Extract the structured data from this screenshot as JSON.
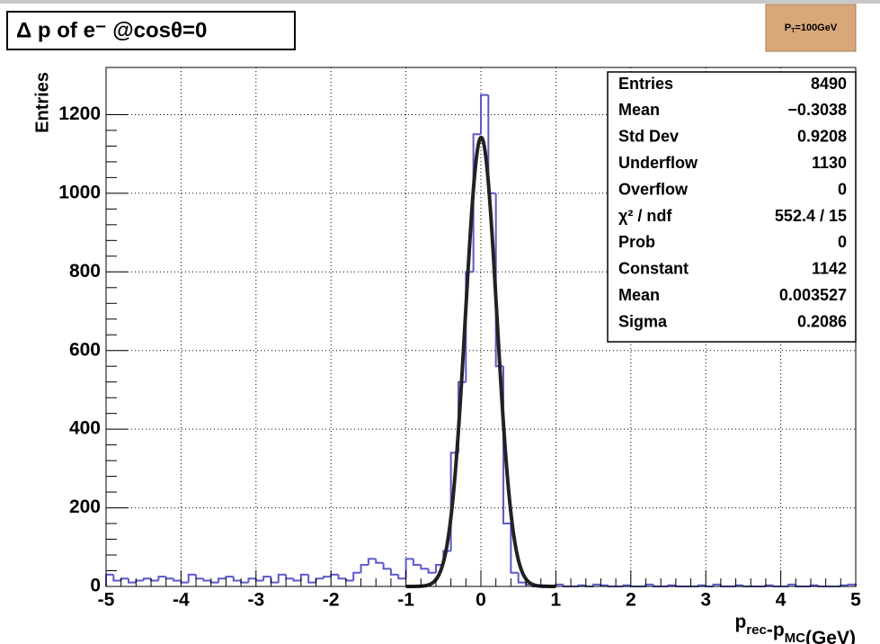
{
  "chart_data": {
    "type": "histogram",
    "title": "Δ p of e⁻ @cosθ=0",
    "tag": {
      "base": "P",
      "sub": "T",
      "rest": "=100GeV"
    },
    "x_label": {
      "parts": [
        {
          "base": "p",
          "sub": "rec"
        },
        {
          "base": "-p",
          "sub": "MC"
        }
      ],
      "rest": "(GeV)"
    },
    "y_label": "Entries",
    "bins": [
      -5,
      -4.9,
      -4.8,
      -4.7,
      -4.6,
      -4.5,
      -4.4,
      -4.3,
      -4.2,
      -4.1,
      -4,
      -3.9,
      -3.8,
      -3.7,
      -3.6,
      -3.5,
      -3.4,
      -3.3,
      -3.2,
      -3.1,
      -3,
      -2.9,
      -2.8,
      -2.7,
      -2.6,
      -2.5,
      -2.4,
      -2.3,
      -2.2,
      -2.1,
      -2,
      -1.9,
      -1.8,
      -1.7,
      -1.6,
      -1.5,
      -1.4,
      -1.3,
      -1.2,
      -1.1,
      -1,
      -0.9,
      -0.8,
      -0.7,
      -0.6,
      -0.5,
      -0.4,
      -0.3,
      -0.2,
      -0.1,
      0,
      0.1,
      0.2,
      0.3,
      0.4,
      0.5,
      0.6,
      0.7,
      0.8,
      0.9,
      1,
      1.1,
      1.2,
      1.3,
      1.4,
      1.5,
      1.6,
      1.7,
      1.8,
      1.9,
      2,
      2.1,
      2.2,
      2.3,
      2.4,
      2.5,
      2.6,
      2.7,
      2.8,
      2.9,
      3,
      3.1,
      3.2,
      3.3,
      3.4,
      3.5,
      3.6,
      3.7,
      3.8,
      3.9,
      4,
      4.1,
      4.2,
      4.3,
      4.4,
      4.5,
      4.6,
      4.7,
      4.8,
      4.9,
      5
    ],
    "values": [
      30,
      15,
      20,
      10,
      15,
      20,
      15,
      25,
      20,
      15,
      10,
      30,
      20,
      15,
      10,
      20,
      25,
      15,
      10,
      20,
      15,
      25,
      10,
      30,
      20,
      15,
      30,
      10,
      20,
      25,
      30,
      20,
      15,
      35,
      55,
      70,
      60,
      45,
      30,
      20,
      70,
      55,
      45,
      35,
      55,
      90,
      340,
      520,
      800,
      1150,
      1250,
      1000,
      560,
      160,
      35,
      10,
      5,
      0,
      3,
      0,
      5,
      0,
      0,
      3,
      0,
      5,
      3,
      0,
      0,
      3,
      0,
      0,
      5,
      0,
      0,
      3,
      0,
      0,
      0,
      3,
      0,
      5,
      0,
      0,
      3,
      0,
      0,
      0,
      3,
      0,
      0,
      5,
      0,
      0,
      3,
      0,
      0,
      0,
      3,
      5
    ],
    "color": "#5a5ac8",
    "fit": {
      "function": "gaus",
      "range": [
        -1,
        1
      ],
      "color": "#222222",
      "parameters": [
        {
          "name": "Constant",
          "value": 1142
        },
        {
          "name": "Mean",
          "value": 0.003527
        },
        {
          "name": "Sigma",
          "value": 0.2086
        }
      ]
    },
    "stats": [
      {
        "name": "Entries",
        "value": "8490"
      },
      {
        "name": "Mean",
        "value": "−0.3038"
      },
      {
        "name": "Std Dev",
        "value": "0.9208"
      },
      {
        "name": "Underflow",
        "value": "1130"
      },
      {
        "name": "Overflow",
        "value": "0"
      },
      {
        "name": "χ² / ndf",
        "value": "552.4 / 15"
      },
      {
        "name": "Prob",
        "value": "0"
      }
    ],
    "xlim": [
      -5,
      5
    ],
    "ylim": [
      0,
      1320
    ],
    "xticks": [
      -5,
      -4,
      -3,
      -2,
      -1,
      0,
      1,
      2,
      3,
      4,
      5
    ],
    "yticks": [
      0,
      200,
      400,
      600,
      800,
      1000,
      {
        "value": 1200,
        "label": "1200"
      }
    ],
    "grid": true
  }
}
